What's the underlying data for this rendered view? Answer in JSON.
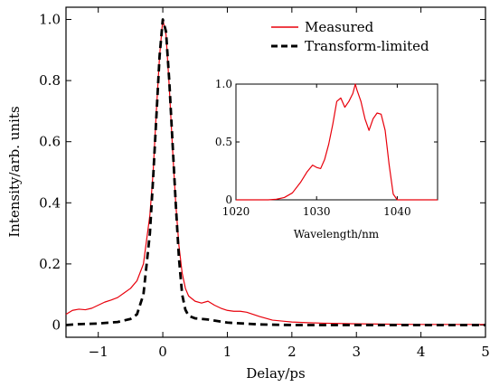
{
  "chart_data": [
    {
      "type": "line",
      "xlabel": "Delay/ps",
      "ylabel": "Intensity/arb. units",
      "xlim": [
        -1.5,
        5
      ],
      "ylim": [
        -0.04,
        1.04
      ],
      "xticks": [
        -1,
        0,
        1,
        2,
        3,
        4,
        5
      ],
      "xtick_labels": [
        "−1",
        "0",
        "1",
        "2",
        "3",
        "4",
        "5"
      ],
      "yticks": [
        0,
        0.2,
        0.4,
        0.6,
        0.8,
        1.0
      ],
      "ytick_labels": [
        "0",
        "0.2",
        "0.4",
        "0.6",
        "0.8",
        "1.0"
      ],
      "legend_position": "top-right",
      "series": [
        {
          "name": "Measured",
          "color": "#e8000b",
          "style": "solid",
          "points": [
            [
              -1.5,
              0.035
            ],
            [
              -1.4,
              0.048
            ],
            [
              -1.3,
              0.052
            ],
            [
              -1.2,
              0.05
            ],
            [
              -1.1,
              0.055
            ],
            [
              -1.0,
              0.065
            ],
            [
              -0.9,
              0.075
            ],
            [
              -0.8,
              0.082
            ],
            [
              -0.7,
              0.09
            ],
            [
              -0.6,
              0.105
            ],
            [
              -0.5,
              0.12
            ],
            [
              -0.4,
              0.145
            ],
            [
              -0.3,
              0.2
            ],
            [
              -0.2,
              0.36
            ],
            [
              -0.15,
              0.5
            ],
            [
              -0.1,
              0.7
            ],
            [
              -0.05,
              0.88
            ],
            [
              0.0,
              1.0
            ],
            [
              0.05,
              0.95
            ],
            [
              0.1,
              0.78
            ],
            [
              0.15,
              0.58
            ],
            [
              0.2,
              0.4
            ],
            [
              0.25,
              0.26
            ],
            [
              0.3,
              0.17
            ],
            [
              0.35,
              0.12
            ],
            [
              0.4,
              0.095
            ],
            [
              0.5,
              0.078
            ],
            [
              0.6,
              0.072
            ],
            [
              0.7,
              0.078
            ],
            [
              0.8,
              0.065
            ],
            [
              0.9,
              0.055
            ],
            [
              1.0,
              0.048
            ],
            [
              1.1,
              0.045
            ],
            [
              1.2,
              0.045
            ],
            [
              1.3,
              0.042
            ],
            [
              1.4,
              0.035
            ],
            [
              1.5,
              0.028
            ],
            [
              1.7,
              0.016
            ],
            [
              1.9,
              0.012
            ],
            [
              2.0,
              0.01
            ],
            [
              2.2,
              0.008
            ],
            [
              2.5,
              0.006
            ],
            [
              3.0,
              0.004
            ],
            [
              3.5,
              0.003
            ],
            [
              4.0,
              0.002
            ],
            [
              4.5,
              0.002
            ],
            [
              5.0,
              0.002
            ]
          ]
        },
        {
          "name": "Transform-limited",
          "color": "#000000",
          "style": "dashed",
          "points": [
            [
              -1.5,
              0.0
            ],
            [
              -1.3,
              0.003
            ],
            [
              -1.0,
              0.005
            ],
            [
              -0.7,
              0.01
            ],
            [
              -0.5,
              0.02
            ],
            [
              -0.4,
              0.035
            ],
            [
              -0.3,
              0.1
            ],
            [
              -0.2,
              0.3
            ],
            [
              -0.15,
              0.48
            ],
            [
              -0.1,
              0.68
            ],
            [
              -0.05,
              0.88
            ],
            [
              0.0,
              1.0
            ],
            [
              0.05,
              0.96
            ],
            [
              0.1,
              0.8
            ],
            [
              0.15,
              0.6
            ],
            [
              0.2,
              0.4
            ],
            [
              0.25,
              0.22
            ],
            [
              0.3,
              0.1
            ],
            [
              0.35,
              0.05
            ],
            [
              0.4,
              0.03
            ],
            [
              0.5,
              0.022
            ],
            [
              0.7,
              0.018
            ],
            [
              1.0,
              0.008
            ],
            [
              1.5,
              0.002
            ],
            [
              2.0,
              0.0
            ],
            [
              3.0,
              0.0
            ],
            [
              4.0,
              0.0
            ],
            [
              5.0,
              0.0
            ]
          ]
        }
      ]
    },
    {
      "type": "line",
      "xlabel": "Wavelength/nm",
      "ylabel": "",
      "xlim": [
        1020,
        1045
      ],
      "ylim": [
        0,
        1.0
      ],
      "xticks": [
        1020,
        1030,
        1040
      ],
      "xtick_labels": [
        "1020",
        "1030",
        "1040"
      ],
      "yticks": [
        0,
        0.5,
        1.0
      ],
      "ytick_labels": [
        "0",
        "0.5",
        "1.0"
      ],
      "series": [
        {
          "color": "#e8000b",
          "style": "solid",
          "points": [
            [
              1020,
              0.0
            ],
            [
              1024,
              0.0
            ],
            [
              1025,
              0.005
            ],
            [
              1026,
              0.02
            ],
            [
              1027,
              0.06
            ],
            [
              1028,
              0.15
            ],
            [
              1028.8,
              0.24
            ],
            [
              1029.5,
              0.3
            ],
            [
              1030,
              0.28
            ],
            [
              1030.5,
              0.27
            ],
            [
              1031,
              0.35
            ],
            [
              1031.5,
              0.48
            ],
            [
              1032,
              0.65
            ],
            [
              1032.5,
              0.85
            ],
            [
              1033,
              0.88
            ],
            [
              1033.5,
              0.8
            ],
            [
              1034,
              0.85
            ],
            [
              1034.5,
              0.92
            ],
            [
              1034.8,
              1.0
            ],
            [
              1035,
              0.95
            ],
            [
              1035.5,
              0.85
            ],
            [
              1036,
              0.7
            ],
            [
              1036.5,
              0.6
            ],
            [
              1037,
              0.7
            ],
            [
              1037.5,
              0.75
            ],
            [
              1038,
              0.74
            ],
            [
              1038.5,
              0.6
            ],
            [
              1039,
              0.3
            ],
            [
              1039.5,
              0.05
            ],
            [
              1040,
              0.0
            ],
            [
              1045,
              0.0
            ]
          ]
        }
      ]
    }
  ]
}
